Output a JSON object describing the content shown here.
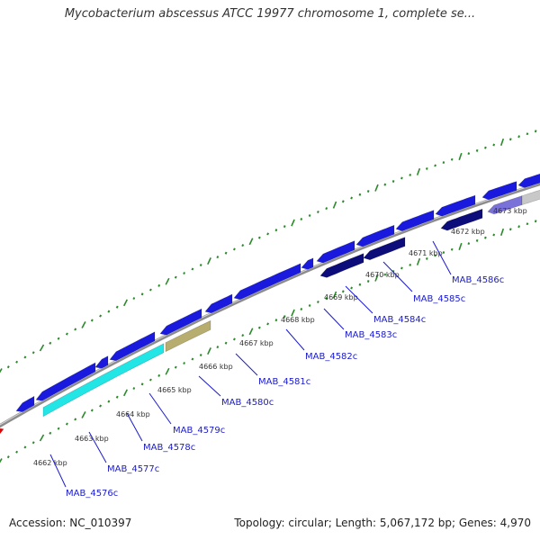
{
  "title": "Mycobacterium abscessus ATCC 19977 chromosome 1, complete se...",
  "footer": {
    "accession": "Accession: NC_010397",
    "summary": "Topology: circular; Length: 5,067,172 bp; Genes: 4,970"
  },
  "kbp_ticks": [
    "4662 kbp",
    "4663 kbp",
    "4664 kbp",
    "4665 kbp",
    "4666 kbp",
    "4667 kbp",
    "4668 kbp",
    "4669 kbp",
    "4670 kbp",
    "4671 kbp",
    "4672 kbp",
    "4673 kbp"
  ],
  "gene_labels": [
    "MAB_4576c",
    "MAB_4577c",
    "MAB_4578c",
    "MAB_4579c",
    "MAB_4580c",
    "MAB_4581c",
    "MAB_4582c",
    "MAB_4583c",
    "MAB_4584c",
    "MAB_4585c",
    "MAB_4586c"
  ],
  "colors": {
    "backbone": "#8c8c8c",
    "gene_blue": "#1a1adf",
    "gene_navy": "#0c0c7a",
    "gene_cyan": "#22e6e6",
    "gene_olive": "#b7ad6e",
    "gene_lavender": "#7a72d8",
    "gene_gray": "#c8c8c8",
    "gene_red": "#e60000",
    "tick_green": "#2a8a2a",
    "label_blue": "#1a1acc"
  }
}
